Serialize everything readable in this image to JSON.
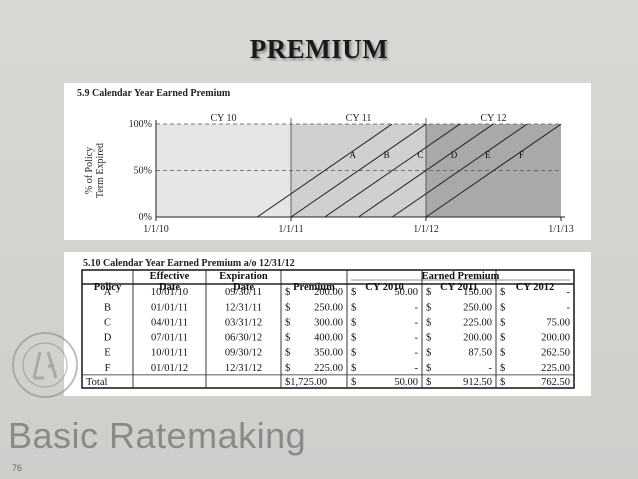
{
  "slide": {
    "title": "PREMIUM",
    "footer_text": "Basic Ratemaking",
    "page_number": "76"
  },
  "figure1": {
    "caption": "5.9 Calendar Year Earned Premium",
    "ylabel_line1": "% of Policy",
    "ylabel_line2": "Term Expired",
    "ytick_labels": [
      "100%",
      "50%",
      "0%"
    ],
    "xtick_labels": [
      "1/1/10",
      "1/1/11",
      "1/1/12",
      "1/1/13"
    ],
    "cy_labels": [
      "CY 10",
      "CY 11",
      "CY 12"
    ],
    "policy_labels": [
      "A",
      "B",
      "C",
      "D",
      "E",
      "F"
    ],
    "colors": {
      "cy10": "#e6e6e6",
      "cy11": "#d0d0d0",
      "cy12": "#a9a9a9"
    }
  },
  "chart_data": {
    "type": "line",
    "title": "5.9 Calendar Year Earned Premium",
    "ylabel": "% of Policy Term Expired",
    "xlabel": "",
    "ylim": [
      0,
      100
    ],
    "x_ticks": [
      "1/1/10",
      "1/1/11",
      "1/1/12",
      "1/1/13"
    ],
    "regions": [
      "CY 10",
      "CY 11",
      "CY 12"
    ],
    "series": [
      {
        "name": "A",
        "x": [
          "10/01/10",
          "09/30/11"
        ],
        "y": [
          0,
          100
        ]
      },
      {
        "name": "B",
        "x": [
          "01/01/11",
          "12/31/11"
        ],
        "y": [
          0,
          100
        ]
      },
      {
        "name": "C",
        "x": [
          "04/01/11",
          "03/31/12"
        ],
        "y": [
          0,
          100
        ]
      },
      {
        "name": "D",
        "x": [
          "07/01/11",
          "06/30/12"
        ],
        "y": [
          0,
          100
        ]
      },
      {
        "name": "E",
        "x": [
          "10/01/11",
          "09/30/12"
        ],
        "y": [
          0,
          100
        ]
      },
      {
        "name": "F",
        "x": [
          "01/01/12",
          "12/31/12"
        ],
        "y": [
          0,
          100
        ]
      }
    ]
  },
  "table": {
    "caption": "5.10 Calendar Year Earned Premium a/o 12/31/12",
    "group_header": "Earned Premium",
    "headers_top": [
      "",
      "Effective",
      "Expiration",
      "",
      "",
      "",
      ""
    ],
    "headers": [
      "Policy",
      "Date",
      "Date",
      "Premium",
      "CY 2010",
      "CY 2011",
      "CY 2012"
    ],
    "rows": [
      {
        "policy": "A",
        "eff": "10/01/10",
        "exp": "09/30/11",
        "premium": "200.00",
        "cy2010": "50.00",
        "cy2011": "150.00",
        "cy2012": "-"
      },
      {
        "policy": "B",
        "eff": "01/01/11",
        "exp": "12/31/11",
        "premium": "250.00",
        "cy2010": "-",
        "cy2011": "250.00",
        "cy2012": "-"
      },
      {
        "policy": "C",
        "eff": "04/01/11",
        "exp": "03/31/12",
        "premium": "300.00",
        "cy2010": "-",
        "cy2011": "225.00",
        "cy2012": "75.00"
      },
      {
        "policy": "D",
        "eff": "07/01/11",
        "exp": "06/30/12",
        "premium": "400.00",
        "cy2010": "-",
        "cy2011": "200.00",
        "cy2012": "200.00"
      },
      {
        "policy": "E",
        "eff": "10/01/11",
        "exp": "09/30/12",
        "premium": "350.00",
        "cy2010": "-",
        "cy2011": "87.50",
        "cy2012": "262.50"
      },
      {
        "policy": "F",
        "eff": "01/01/12",
        "exp": "12/31/12",
        "premium": "225.00",
        "cy2010": "-",
        "cy2011": "-",
        "cy2012": "225.00"
      }
    ],
    "total": {
      "label": "Total",
      "premium": "$1,725.00",
      "cy2010": "50.00",
      "cy2011": "912.50",
      "cy2012": "762.50"
    },
    "currency_symbol": "$"
  },
  "seal_text": "CASUALTY ACTUARIAL SOCIETY 1914"
}
